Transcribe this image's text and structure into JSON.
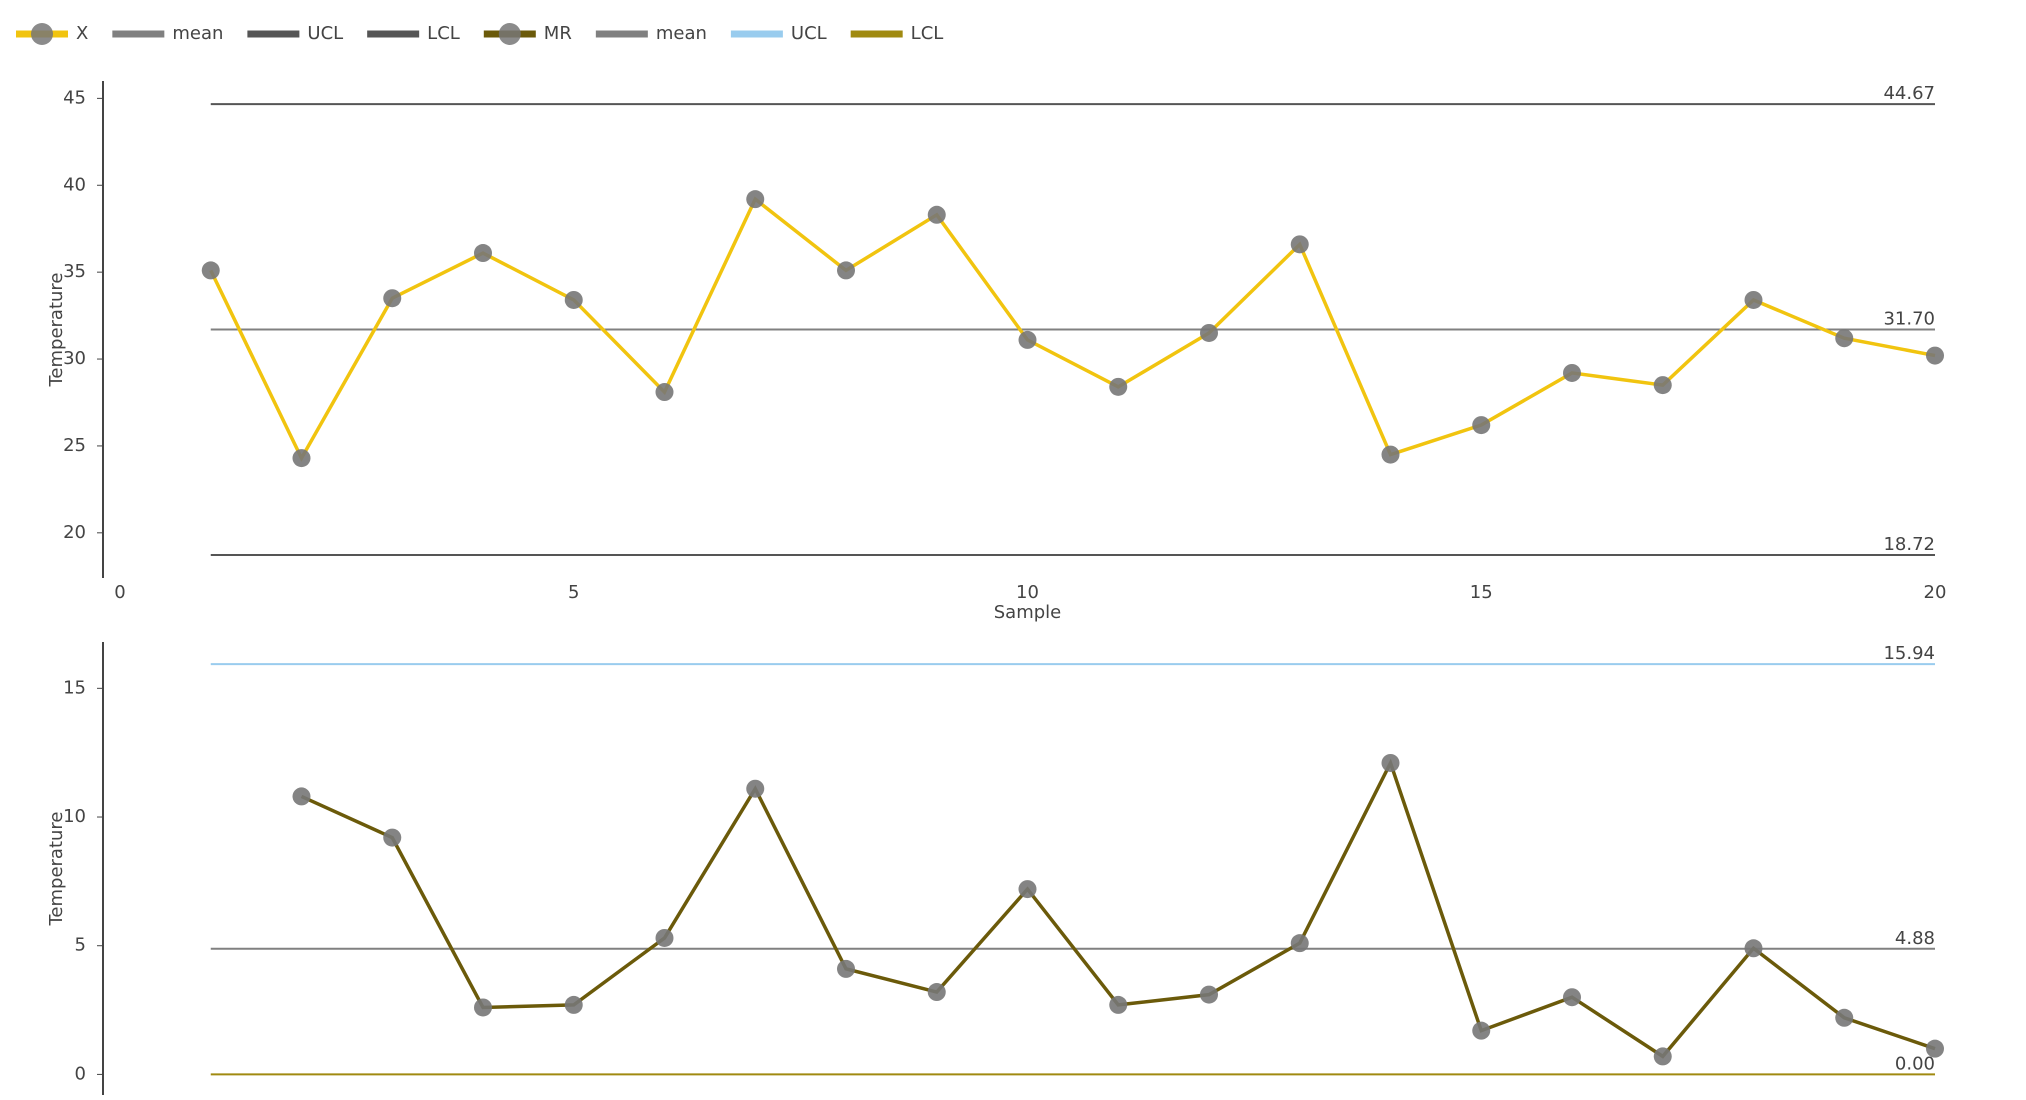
{
  "chart_data": [
    {
      "type": "line",
      "y_label": "Temperature",
      "x_label": "Sample",
      "xlim": [
        0,
        20
      ],
      "xticks": [
        0,
        5,
        10,
        15,
        20
      ],
      "ylim": [
        17.4,
        46
      ],
      "yticks": [
        20,
        25,
        30,
        35,
        40,
        45
      ],
      "series": [
        {
          "name": "X",
          "color": "#f1c40f",
          "marker_color": "#777777",
          "x": [
            1,
            2,
            3,
            4,
            5,
            6,
            7,
            8,
            9,
            10,
            11,
            12,
            13,
            14,
            15,
            16,
            17,
            18,
            19,
            20
          ],
          "values": [
            35.1,
            24.3,
            33.5,
            36.1,
            33.4,
            28.1,
            39.2,
            35.1,
            38.3,
            31.1,
            28.4,
            31.5,
            36.6,
            24.5,
            26.2,
            29.2,
            28.5,
            33.4,
            31.2,
            30.2
          ]
        }
      ],
      "lines": [
        {
          "name": "mean",
          "value": 31.7,
          "value_label": "31.70",
          "color": "#808080"
        },
        {
          "name": "UCL",
          "value": 44.67,
          "value_label": "44.67",
          "color": "#555555"
        },
        {
          "name": "LCL",
          "value": 18.72,
          "value_label": "18.72",
          "color": "#555555"
        }
      ]
    },
    {
      "type": "line",
      "y_label": "Temperature",
      "xlim": [
        0,
        20
      ],
      "ylim": [
        -0.8,
        16.8
      ],
      "yticks": [
        0,
        5,
        10,
        15
      ],
      "series": [
        {
          "name": "MR",
          "color": "#6b5a0a",
          "marker_color": "#777777",
          "x": [
            2,
            3,
            4,
            5,
            6,
            7,
            8,
            9,
            10,
            11,
            12,
            13,
            14,
            15,
            16,
            17,
            18,
            19,
            20
          ],
          "values": [
            10.8,
            9.2,
            2.6,
            2.7,
            5.3,
            11.1,
            4.1,
            3.2,
            7.2,
            2.7,
            3.1,
            5.1,
            12.1,
            1.7,
            3.0,
            0.7,
            4.9,
            2.2,
            1.0
          ]
        }
      ],
      "lines": [
        {
          "name": "mean",
          "value": 4.88,
          "value_label": "4.88",
          "color": "#808080"
        },
        {
          "name": "UCL",
          "value": 15.94,
          "value_label": "15.94",
          "color": "#99ccee"
        },
        {
          "name": "LCL",
          "value": 0,
          "value_label": "0.00",
          "color": "#a08a10"
        }
      ]
    }
  ]
}
